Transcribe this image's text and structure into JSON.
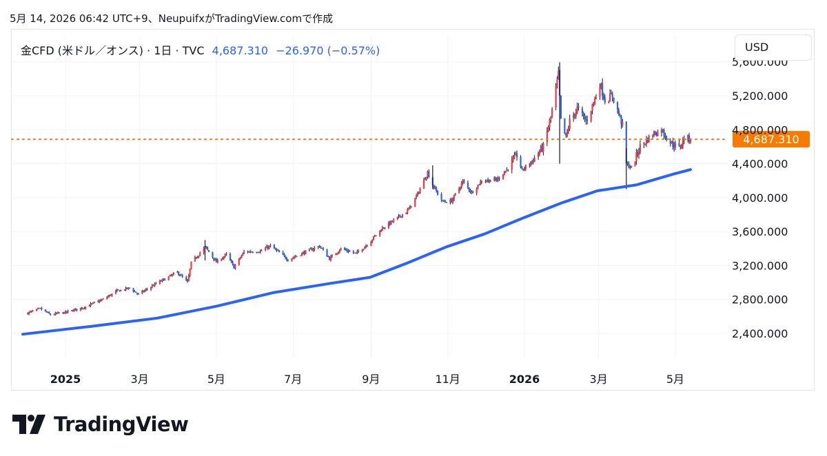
{
  "caption": "5月 14, 2026 06:42 UTC+9、NeupuifxがTradingView.comで作成",
  "legend": {
    "symbol": "金CFD (米ドル／オンス) · 1日 · TVC",
    "price": "4,687.310",
    "change": "−26.970 (−0.57%)"
  },
  "currency": "USD",
  "brand": "TradingView",
  "colors": {
    "up_candle": "#f23645",
    "down_candle": "#2962ff",
    "wick": "#131722",
    "moving_average": "#2962ff",
    "last_price": "#f57c00",
    "axis_text": "#131722"
  },
  "chart_data": {
    "type": "candlestick",
    "interval": "1日",
    "grid": true,
    "price_scale": "right",
    "last_price": 4687.31,
    "last_price_label": "4,687.310",
    "ylim": [
      2000,
      5800
    ],
    "y_ticks": [
      {
        "value": 5600,
        "label": "5,600.000"
      },
      {
        "value": 5200,
        "label": "5,200.000"
      },
      {
        "value": 4800,
        "label": "4,800.000"
      },
      {
        "value": 4400,
        "label": "4,400.000"
      },
      {
        "value": 4000,
        "label": "4,000.000"
      },
      {
        "value": 3600,
        "label": "3,600.000"
      },
      {
        "value": 3200,
        "label": "3,200.000"
      },
      {
        "value": 2800,
        "label": "2,800.000"
      },
      {
        "value": 2400,
        "label": "2,400.000"
      }
    ],
    "x_ticks": [
      {
        "date": "2025-01-01",
        "label": "2025",
        "bold": true
      },
      {
        "date": "2025-03-01",
        "label": "3月"
      },
      {
        "date": "2025-05-01",
        "label": "5月"
      },
      {
        "date": "2025-07-01",
        "label": "7月"
      },
      {
        "date": "2025-09-01",
        "label": "9月"
      },
      {
        "date": "2025-11-01",
        "label": "11月"
      },
      {
        "date": "2026-01-01",
        "label": "2026",
        "bold": true
      },
      {
        "date": "2026-03-01",
        "label": "3月"
      },
      {
        "date": "2026-05-01",
        "label": "5月"
      }
    ],
    "close_path": [
      [
        "2024-12-02",
        2640
      ],
      [
        "2024-12-12",
        2690
      ],
      [
        "2024-12-20",
        2620
      ],
      [
        "2025-01-02",
        2650
      ],
      [
        "2025-01-16",
        2710
      ],
      [
        "2025-01-31",
        2800
      ],
      [
        "2025-02-11",
        2900
      ],
      [
        "2025-02-21",
        2935
      ],
      [
        "2025-02-28",
        2860
      ],
      [
        "2025-03-14",
        2985
      ],
      [
        "2025-03-31",
        3120
      ],
      [
        "2025-04-08",
        3000
      ],
      [
        "2025-04-11",
        3230
      ],
      [
        "2025-04-22",
        3420
      ],
      [
        "2025-05-01",
        3240
      ],
      [
        "2025-05-09",
        3330
      ],
      [
        "2025-05-15",
        3180
      ],
      [
        "2025-05-23",
        3360
      ],
      [
        "2025-06-05",
        3370
      ],
      [
        "2025-06-13",
        3430
      ],
      [
        "2025-06-27",
        3270
      ],
      [
        "2025-07-22",
        3430
      ],
      [
        "2025-07-30",
        3280
      ],
      [
        "2025-08-08",
        3400
      ],
      [
        "2025-08-20",
        3340
      ],
      [
        "2025-08-29",
        3450
      ],
      [
        "2025-09-10",
        3640
      ],
      [
        "2025-09-23",
        3770
      ],
      [
        "2025-10-01",
        3860
      ],
      [
        "2025-10-08",
        4040
      ],
      [
        "2025-10-16",
        4300
      ],
      [
        "2025-10-21",
        4120
      ],
      [
        "2025-10-28",
        3950
      ],
      [
        "2025-11-04",
        3960
      ],
      [
        "2025-11-13",
        4190
      ],
      [
        "2025-11-20",
        4060
      ],
      [
        "2025-11-28",
        4200
      ],
      [
        "2025-12-10",
        4210
      ],
      [
        "2025-12-18",
        4330
      ],
      [
        "2025-12-26",
        4500
      ],
      [
        "2025-12-30",
        4320
      ],
      [
        "2026-01-08",
        4450
      ],
      [
        "2026-01-16",
        4600
      ],
      [
        "2026-01-22",
        4950
      ],
      [
        "2026-01-28",
        5450
      ],
      [
        "2026-01-30",
        4900
      ],
      [
        "2026-02-03",
        4700
      ],
      [
        "2026-02-06",
        4900
      ],
      [
        "2026-02-12",
        5050
      ],
      [
        "2026-02-19",
        4900
      ],
      [
        "2026-02-27",
        5200
      ],
      [
        "2026-03-02",
        5350
      ],
      [
        "2026-03-06",
        5150
      ],
      [
        "2026-03-12",
        5200
      ],
      [
        "2026-03-20",
        4850
      ],
      [
        "2026-03-23",
        4400
      ],
      [
        "2026-03-27",
        4350
      ],
      [
        "2026-04-03",
        4600
      ],
      [
        "2026-04-13",
        4750
      ],
      [
        "2026-04-20",
        4800
      ],
      [
        "2026-04-27",
        4650
      ],
      [
        "2026-05-04",
        4580
      ],
      [
        "2026-05-08",
        4700
      ],
      [
        "2026-05-13",
        4687.31
      ]
    ],
    "moving_average": [
      [
        "2024-11-28",
        2390
      ],
      [
        "2025-01-20",
        2480
      ],
      [
        "2025-03-15",
        2580
      ],
      [
        "2025-05-01",
        2720
      ],
      [
        "2025-06-15",
        2880
      ],
      [
        "2025-07-31",
        2990
      ],
      [
        "2025-08-31",
        3060
      ],
      [
        "2025-09-30",
        3230
      ],
      [
        "2025-10-31",
        3420
      ],
      [
        "2025-11-30",
        3570
      ],
      [
        "2025-12-31",
        3760
      ],
      [
        "2026-01-31",
        3940
      ],
      [
        "2026-02-28",
        4080
      ],
      [
        "2026-03-31",
        4150
      ],
      [
        "2026-04-30",
        4280
      ],
      [
        "2026-05-13",
        4330
      ]
    ],
    "wick_extremes": [
      [
        "2026-01-29",
        5595,
        4400
      ],
      [
        "2026-03-23",
        4580,
        4100
      ],
      [
        "2025-04-22",
        3500,
        3260
      ],
      [
        "2025-10-20",
        4380,
        4100
      ]
    ]
  }
}
